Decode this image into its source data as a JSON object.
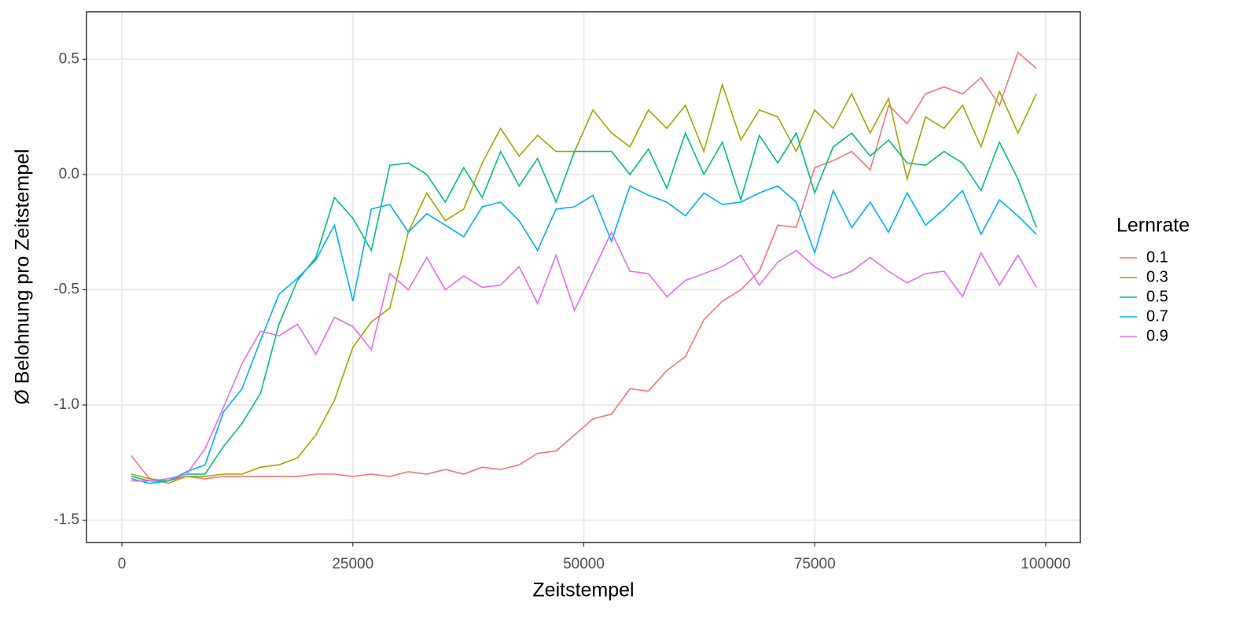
{
  "chart_data": {
    "type": "line",
    "x_label": "Zeitstempel",
    "y_label": "Ø Belohnung pro Zeitstempel",
    "legend_title": "Lernrate",
    "legend_position": "right",
    "grid": true,
    "xlim": [
      -3830,
      103745
    ],
    "ylim": [
      -1.597,
      0.706
    ],
    "xticks": [
      0,
      25000,
      50000,
      75000,
      100000
    ],
    "yticks": [
      -1.5,
      {
        "value": -1,
        "label": "-1.0"
      },
      -0.5,
      {
        "value": 0,
        "label": "0.0"
      },
      0.5
    ],
    "x": [
      1000,
      3000,
      5000,
      7000,
      9000,
      11000,
      13000,
      15000,
      17000,
      19000,
      21000,
      23000,
      25000,
      27000,
      29000,
      31000,
      33000,
      35000,
      37000,
      39000,
      41000,
      43000,
      45000,
      47000,
      49000,
      51000,
      53000,
      55000,
      57000,
      59000,
      61000,
      63000,
      65000,
      67000,
      69000,
      71000,
      73000,
      75000,
      77000,
      79000,
      81000,
      83000,
      85000,
      87000,
      89000,
      91000,
      93000,
      95000,
      97000,
      99000
    ],
    "series": [
      {
        "name": "0.1",
        "color": "#F8766D",
        "values": [
          -1.22,
          -1.32,
          -1.33,
          -1.31,
          -1.32,
          -1.31,
          -1.31,
          -1.31,
          -1.31,
          -1.31,
          -1.3,
          -1.3,
          -1.31,
          -1.3,
          -1.31,
          -1.29,
          -1.3,
          -1.28,
          -1.3,
          -1.27,
          -1.28,
          -1.26,
          -1.21,
          -1.2,
          -1.13,
          -1.06,
          -1.04,
          -0.93,
          -0.94,
          -0.85,
          -0.79,
          -0.63,
          -0.55,
          -0.5,
          -0.42,
          -0.22,
          -0.23,
          0.03,
          0.06,
          0.1,
          0.02,
          0.3,
          0.22,
          0.35,
          0.38,
          0.35,
          0.42,
          0.3,
          0.53,
          0.46
        ]
      },
      {
        "name": "0.3",
        "color": "#A3A500",
        "values": [
          -1.3,
          -1.32,
          -1.34,
          -1.31,
          -1.31,
          -1.3,
          -1.3,
          -1.27,
          -1.26,
          -1.23,
          -1.13,
          -0.98,
          -0.75,
          -0.64,
          -0.58,
          -0.25,
          -0.08,
          -0.2,
          -0.15,
          0.05,
          0.2,
          0.08,
          0.17,
          0.1,
          0.1,
          0.28,
          0.18,
          0.12,
          0.28,
          0.2,
          0.3,
          0.1,
          0.39,
          0.15,
          0.28,
          0.25,
          0.1,
          0.28,
          0.2,
          0.35,
          0.18,
          0.33,
          -0.02,
          0.25,
          0.2,
          0.3,
          0.12,
          0.36,
          0.18,
          0.35
        ]
      },
      {
        "name": "0.5",
        "color": "#00BF7D",
        "values": [
          -1.31,
          -1.33,
          -1.33,
          -1.3,
          -1.3,
          -1.18,
          -1.08,
          -0.95,
          -0.65,
          -0.46,
          -0.36,
          -0.1,
          -0.19,
          -0.33,
          0.04,
          0.05,
          0.0,
          -0.12,
          0.03,
          -0.1,
          0.1,
          -0.05,
          0.07,
          -0.12,
          0.1,
          0.1,
          0.1,
          0.0,
          0.11,
          -0.06,
          0.18,
          0.0,
          0.14,
          -0.11,
          0.17,
          0.05,
          0.18,
          -0.08,
          0.12,
          0.18,
          0.08,
          0.15,
          0.05,
          0.04,
          0.1,
          0.05,
          -0.07,
          0.14,
          -0.02,
          -0.23
        ]
      },
      {
        "name": "0.7",
        "color": "#00B0F6",
        "values": [
          -1.32,
          -1.34,
          -1.33,
          -1.29,
          -1.26,
          -1.03,
          -0.93,
          -0.72,
          -0.52,
          -0.45,
          -0.37,
          -0.22,
          -0.55,
          -0.15,
          -0.13,
          -0.25,
          -0.17,
          -0.22,
          -0.27,
          -0.14,
          -0.12,
          -0.2,
          -0.33,
          -0.15,
          -0.14,
          -0.09,
          -0.29,
          -0.05,
          -0.09,
          -0.12,
          -0.18,
          -0.08,
          -0.13,
          -0.12,
          -0.08,
          -0.05,
          -0.12,
          -0.34,
          -0.07,
          -0.23,
          -0.12,
          -0.25,
          -0.08,
          -0.22,
          -0.15,
          -0.07,
          -0.26,
          -0.11,
          -0.18,
          -0.26
        ]
      },
      {
        "name": "0.9",
        "color": "#E76BF3",
        "values": [
          -1.33,
          -1.33,
          -1.32,
          -1.3,
          -1.19,
          -1.01,
          -0.82,
          -0.68,
          -0.7,
          -0.65,
          -0.78,
          -0.62,
          -0.66,
          -0.76,
          -0.43,
          -0.5,
          -0.36,
          -0.5,
          -0.44,
          -0.49,
          -0.48,
          -0.4,
          -0.56,
          -0.35,
          -0.59,
          -0.42,
          -0.25,
          -0.42,
          -0.43,
          -0.53,
          -0.46,
          -0.43,
          -0.4,
          -0.35,
          -0.48,
          -0.38,
          -0.33,
          -0.4,
          -0.45,
          -0.42,
          -0.36,
          -0.42,
          -0.47,
          -0.43,
          -0.42,
          -0.53,
          -0.34,
          -0.48,
          -0.35,
          -0.49
        ]
      }
    ]
  }
}
